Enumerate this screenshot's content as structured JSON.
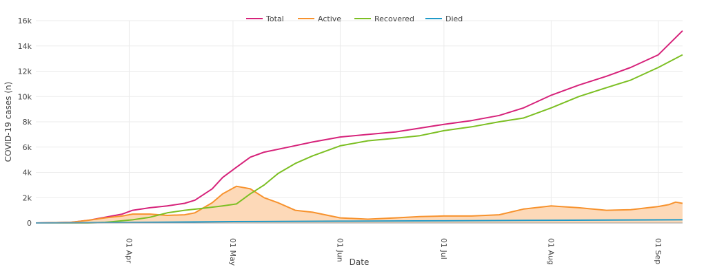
{
  "chart_data": {
    "type": "line",
    "xlabel": "Date",
    "ylabel": "COVID-19 cases (n)",
    "ylim": [
      0,
      16000
    ],
    "y_ticks": [
      {
        "value": 0,
        "label": "0"
      },
      {
        "value": 2000,
        "label": "2k"
      },
      {
        "value": 4000,
        "label": "4k"
      },
      {
        "value": 6000,
        "label": "6k"
      },
      {
        "value": 8000,
        "label": "8k"
      },
      {
        "value": 10000,
        "label": "10k"
      },
      {
        "value": 12000,
        "label": "12k"
      },
      {
        "value": 14000,
        "label": "14k"
      },
      {
        "value": 16000,
        "label": "16k"
      }
    ],
    "x_range": [
      "2020-03-05",
      "2020-09-08"
    ],
    "x_ticks": [
      {
        "date": "2020-04-01",
        "label": "01 Apr"
      },
      {
        "date": "2020-05-01",
        "label": "01 May"
      },
      {
        "date": "2020-06-01",
        "label": "01 Jun"
      },
      {
        "date": "2020-07-01",
        "label": "01 Jul"
      },
      {
        "date": "2020-08-01",
        "label": "01 Aug"
      },
      {
        "date": "2020-09-01",
        "label": "01 Sep"
      }
    ],
    "legend_position": "top-center",
    "grid": true,
    "series": [
      {
        "name": "Total",
        "color": "#d6227a",
        "fill": false,
        "points": [
          [
            "2020-03-05",
            0
          ],
          [
            "2020-03-15",
            50
          ],
          [
            "2020-03-20",
            200
          ],
          [
            "2020-03-25",
            450
          ],
          [
            "2020-03-30",
            700
          ],
          [
            "2020-04-02",
            1000
          ],
          [
            "2020-04-07",
            1200
          ],
          [
            "2020-04-12",
            1350
          ],
          [
            "2020-04-17",
            1550
          ],
          [
            "2020-04-20",
            1800
          ],
          [
            "2020-04-25",
            2700
          ],
          [
            "2020-04-28",
            3600
          ],
          [
            "2020-05-02",
            4400
          ],
          [
            "2020-05-06",
            5200
          ],
          [
            "2020-05-10",
            5600
          ],
          [
            "2020-05-17",
            6000
          ],
          [
            "2020-05-24",
            6400
          ],
          [
            "2020-06-01",
            6800
          ],
          [
            "2020-06-09",
            7000
          ],
          [
            "2020-06-17",
            7200
          ],
          [
            "2020-06-24",
            7500
          ],
          [
            "2020-07-01",
            7800
          ],
          [
            "2020-07-09",
            8100
          ],
          [
            "2020-07-17",
            8500
          ],
          [
            "2020-07-24",
            9100
          ],
          [
            "2020-08-01",
            10100
          ],
          [
            "2020-08-09",
            10900
          ],
          [
            "2020-08-17",
            11600
          ],
          [
            "2020-08-24",
            12300
          ],
          [
            "2020-09-01",
            13300
          ],
          [
            "2020-09-08",
            15200
          ]
        ]
      },
      {
        "name": "Active",
        "color": "#f7922d",
        "fill": true,
        "fill_color": "#fdd9b8",
        "points": [
          [
            "2020-03-05",
            0
          ],
          [
            "2020-03-15",
            50
          ],
          [
            "2020-03-20",
            200
          ],
          [
            "2020-03-25",
            400
          ],
          [
            "2020-03-30",
            550
          ],
          [
            "2020-04-02",
            700
          ],
          [
            "2020-04-07",
            700
          ],
          [
            "2020-04-12",
            600
          ],
          [
            "2020-04-17",
            650
          ],
          [
            "2020-04-20",
            800
          ],
          [
            "2020-04-25",
            1600
          ],
          [
            "2020-04-28",
            2300
          ],
          [
            "2020-05-02",
            2900
          ],
          [
            "2020-05-06",
            2700
          ],
          [
            "2020-05-10",
            2000
          ],
          [
            "2020-05-14",
            1600
          ],
          [
            "2020-05-19",
            1000
          ],
          [
            "2020-05-24",
            850
          ],
          [
            "2020-06-01",
            400
          ],
          [
            "2020-06-09",
            300
          ],
          [
            "2020-06-17",
            400
          ],
          [
            "2020-06-24",
            500
          ],
          [
            "2020-07-01",
            550
          ],
          [
            "2020-07-09",
            550
          ],
          [
            "2020-07-17",
            650
          ],
          [
            "2020-07-24",
            1100
          ],
          [
            "2020-08-01",
            1350
          ],
          [
            "2020-08-09",
            1200
          ],
          [
            "2020-08-17",
            1000
          ],
          [
            "2020-08-24",
            1050
          ],
          [
            "2020-09-01",
            1300
          ],
          [
            "2020-09-04",
            1450
          ],
          [
            "2020-09-06",
            1650
          ],
          [
            "2020-09-08",
            1550
          ]
        ]
      },
      {
        "name": "Recovered",
        "color": "#7cbf23",
        "fill": false,
        "points": [
          [
            "2020-03-05",
            0
          ],
          [
            "2020-03-20",
            0
          ],
          [
            "2020-03-25",
            50
          ],
          [
            "2020-04-02",
            250
          ],
          [
            "2020-04-07",
            450
          ],
          [
            "2020-04-12",
            800
          ],
          [
            "2020-04-17",
            1000
          ],
          [
            "2020-04-22",
            1150
          ],
          [
            "2020-04-28",
            1350
          ],
          [
            "2020-05-02",
            1500
          ],
          [
            "2020-05-06",
            2300
          ],
          [
            "2020-05-10",
            3000
          ],
          [
            "2020-05-14",
            3900
          ],
          [
            "2020-05-19",
            4700
          ],
          [
            "2020-05-24",
            5300
          ],
          [
            "2020-06-01",
            6100
          ],
          [
            "2020-06-09",
            6500
          ],
          [
            "2020-06-17",
            6700
          ],
          [
            "2020-06-24",
            6900
          ],
          [
            "2020-07-01",
            7300
          ],
          [
            "2020-07-09",
            7600
          ],
          [
            "2020-07-17",
            8000
          ],
          [
            "2020-07-24",
            8300
          ],
          [
            "2020-08-01",
            9100
          ],
          [
            "2020-08-09",
            10000
          ],
          [
            "2020-08-17",
            10700
          ],
          [
            "2020-08-24",
            11300
          ],
          [
            "2020-09-01",
            12300
          ],
          [
            "2020-09-08",
            13300
          ]
        ]
      },
      {
        "name": "Died",
        "color": "#1f9ac9",
        "fill": false,
        "points": [
          [
            "2020-03-05",
            0
          ],
          [
            "2020-04-01",
            30
          ],
          [
            "2020-05-01",
            110
          ],
          [
            "2020-06-01",
            140
          ],
          [
            "2020-07-01",
            170
          ],
          [
            "2020-08-01",
            210
          ],
          [
            "2020-09-08",
            250
          ]
        ]
      }
    ]
  }
}
